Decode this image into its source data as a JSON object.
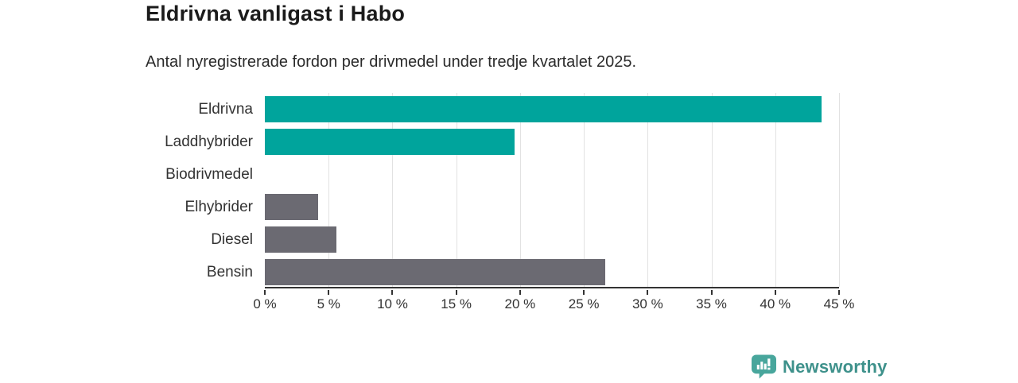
{
  "title": "Eldrivna vanligast i Habo",
  "subtitle": "Antal nyregistrerade fordon per drivmedel under tredje kvartalet 2025.",
  "chart_data": {
    "type": "bar",
    "orientation": "horizontal",
    "categories": [
      "Eldrivna",
      "Laddhybrider",
      "Biodrivmedel",
      "Elhybrider",
      "Diesel",
      "Bensin"
    ],
    "values": [
      43.6,
      19.6,
      0,
      4.2,
      5.6,
      26.7
    ],
    "bar_colors": [
      "#00a49c",
      "#00a49c",
      "#6b6a72",
      "#6b6a72",
      "#6b6a72",
      "#6b6a72"
    ],
    "unit": "%",
    "xlim": [
      0,
      45
    ],
    "ticks": [
      0,
      5,
      10,
      15,
      20,
      25,
      30,
      35,
      40,
      45
    ],
    "tick_labels": [
      "0 %",
      "5 %",
      "10 %",
      "15 %",
      "20 %",
      "25 %",
      "30 %",
      "35 %",
      "40 %",
      "45 %"
    ],
    "grid": true,
    "legend": "none",
    "title": "Eldrivna vanligast i Habo",
    "xlabel": "",
    "ylabel": ""
  },
  "colors": {
    "accent_teal": "#00a49c",
    "bar_gray": "#6b6a72",
    "gridline": "#e2e2e2",
    "axis": "#333333",
    "title_text": "#1b1b1b",
    "body_text": "#333333",
    "logo_teal": "#3e918b",
    "logo_icon_fill": "#48a69c"
  },
  "branding": {
    "logo_text": "Newsworthy",
    "logo_icon": "newsworthy-chart-bubble-icon"
  }
}
